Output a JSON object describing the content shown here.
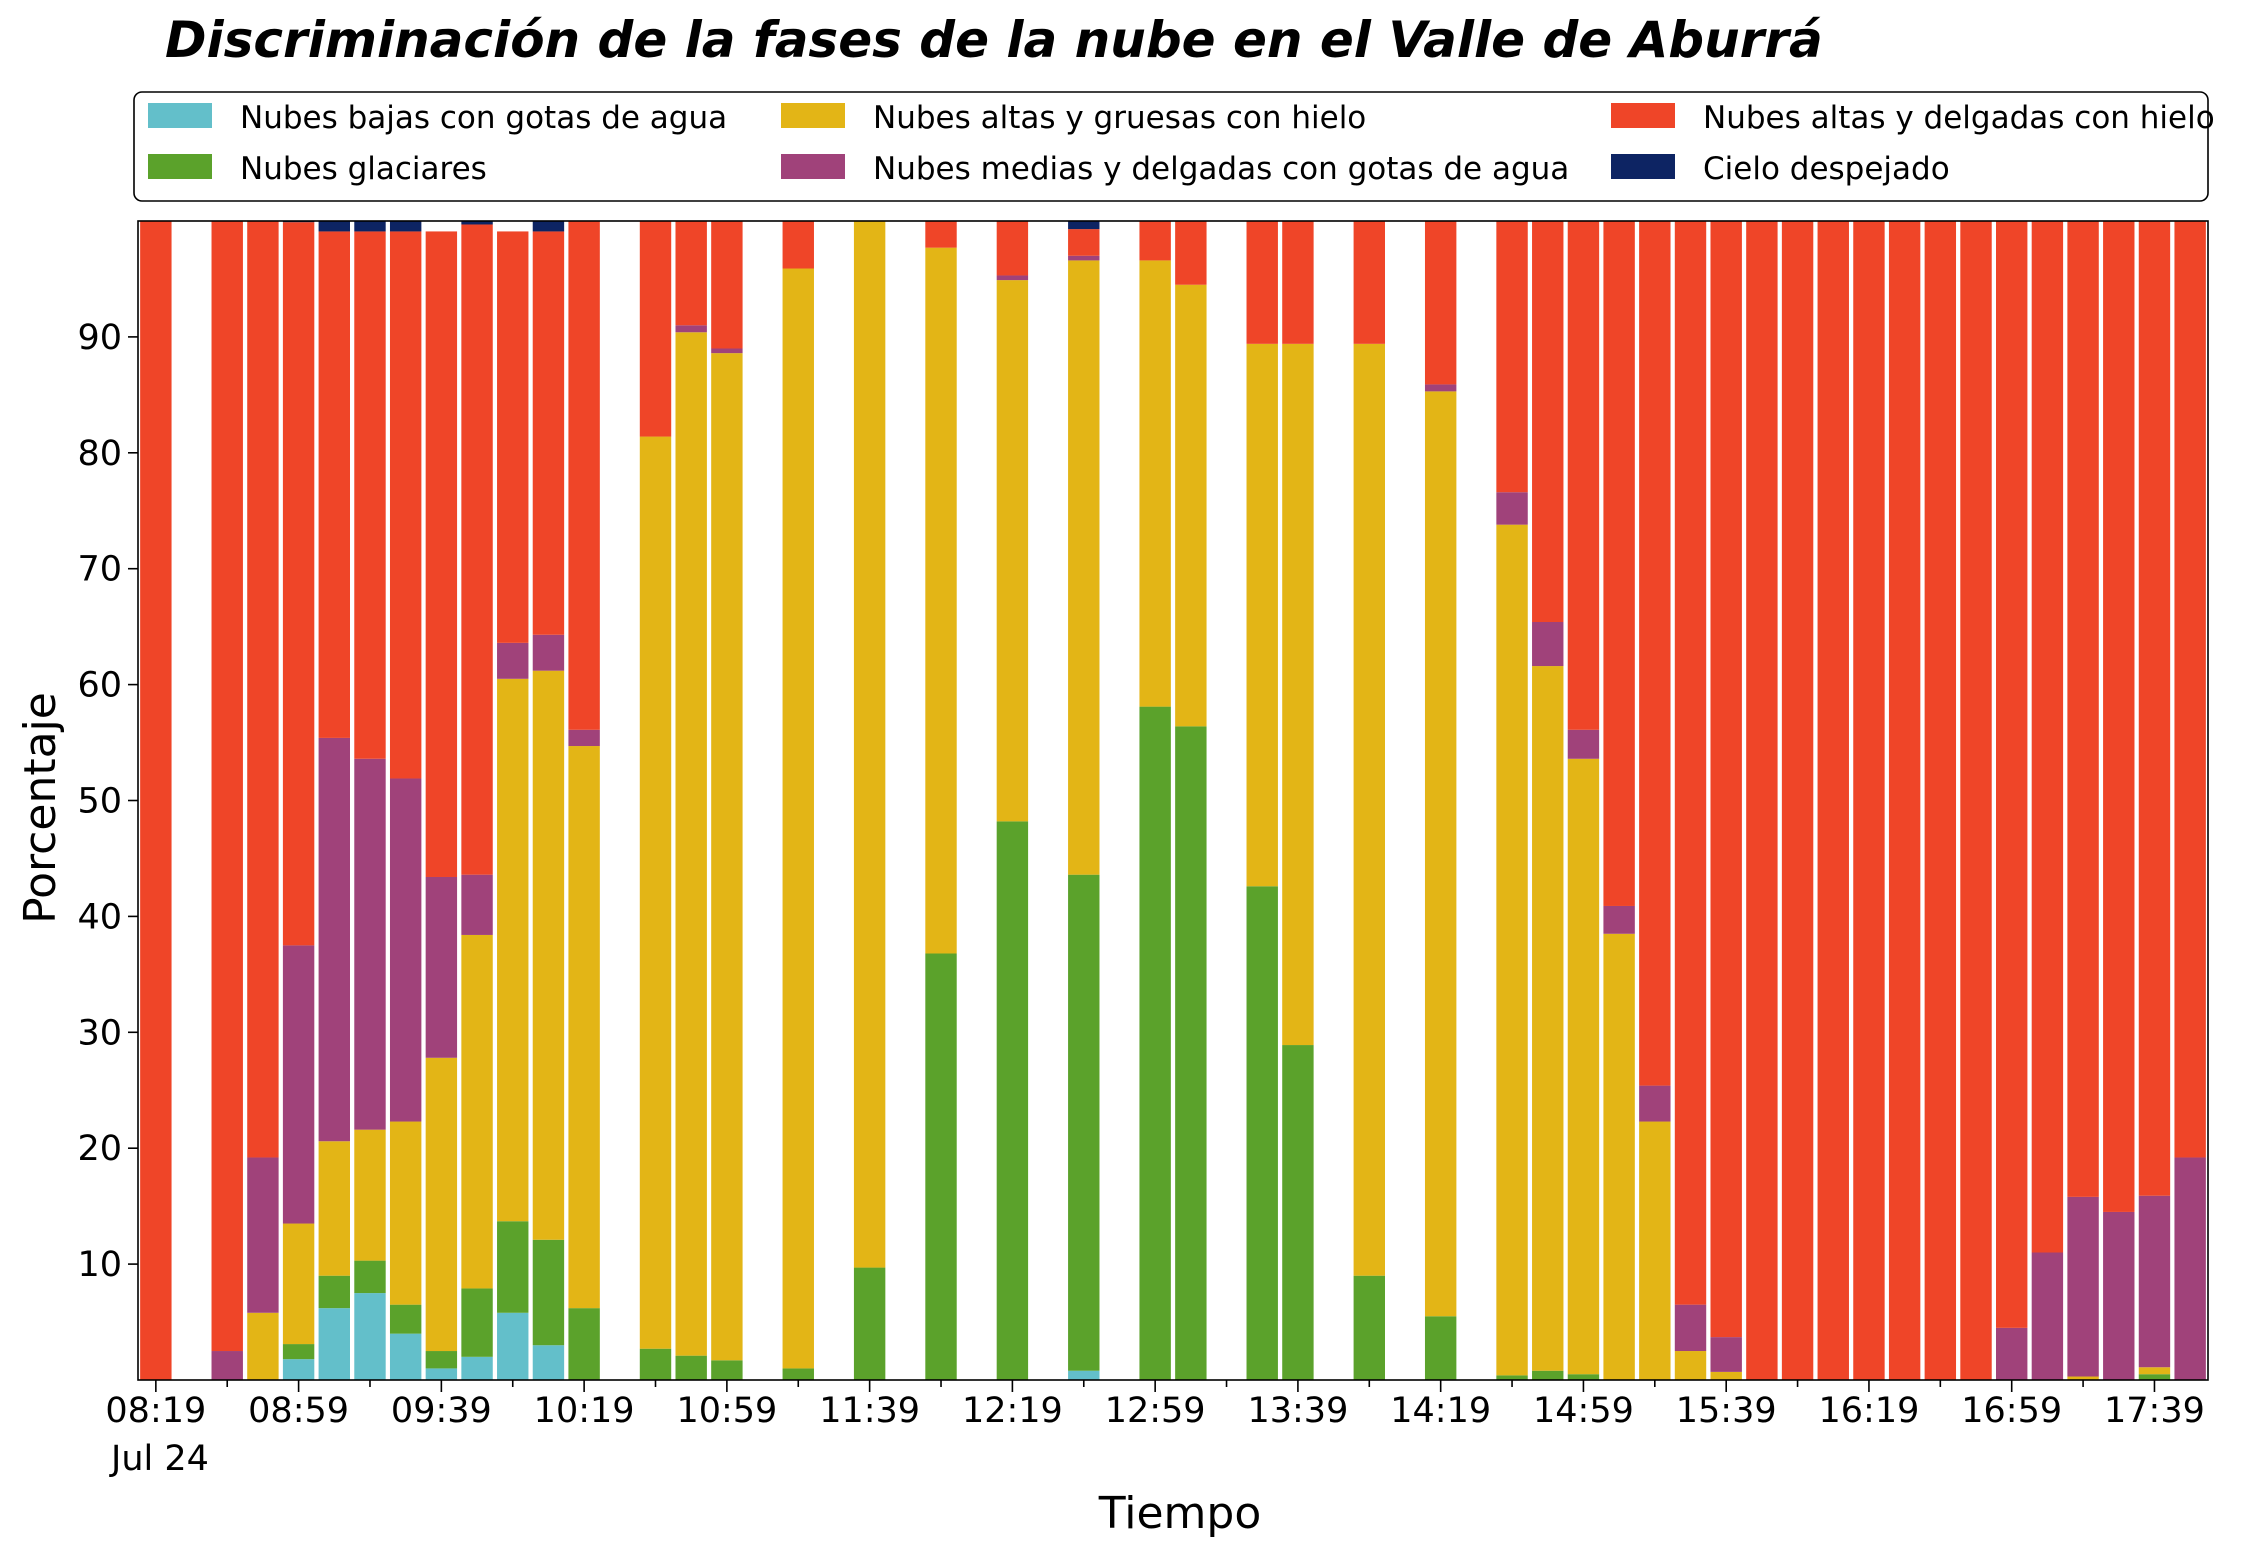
{
  "chart_data": {
    "type": "bar",
    "stacked": true,
    "title": "Discriminación de la fases de la nube en el Valle de Aburrá",
    "xlabel": "Tiempo",
    "ylabel": "Porcentaje",
    "ylim": [
      0,
      100
    ],
    "yticks": [
      10,
      20,
      30,
      40,
      50,
      60,
      70,
      80,
      90
    ],
    "x_tick_labels": [
      "08:19",
      "08:59",
      "09:39",
      "10:19",
      "10:59",
      "11:39",
      "12:19",
      "12:59",
      "13:39",
      "14:19",
      "14:59",
      "15:39",
      "16:19",
      "16:59",
      "17:39"
    ],
    "x_date_label": "Jul 24",
    "legend_position": "top",
    "x": [
      "08:19",
      "08:29",
      "08:39",
      "08:49",
      "08:59",
      "09:09",
      "09:19",
      "09:29",
      "09:39",
      "09:49",
      "09:59",
      "10:09",
      "10:19",
      "10:29",
      "10:39",
      "10:49",
      "10:59",
      "11:09",
      "11:19",
      "11:29",
      "11:39",
      "11:49",
      "11:59",
      "12:09",
      "12:19",
      "12:29",
      "12:39",
      "12:49",
      "12:59",
      "13:09",
      "13:19",
      "13:29",
      "13:39",
      "13:49",
      "13:59",
      "14:09",
      "14:19",
      "14:29",
      "14:39",
      "14:49",
      "14:59",
      "15:09",
      "15:19",
      "15:29",
      "15:39",
      "15:49",
      "15:59",
      "16:09",
      "16:19",
      "16:29",
      "16:39",
      "16:49",
      "16:59",
      "17:09",
      "17:19",
      "17:29",
      "17:39",
      "17:49"
    ],
    "series": [
      {
        "name": "Nubes bajas con gotas de agua",
        "color": "#63bfca",
        "values": [
          0,
          null,
          0,
          0,
          1.8,
          6.2,
          7.5,
          4,
          1,
          2,
          5.8,
          3,
          0,
          null,
          0,
          0,
          0,
          null,
          0,
          null,
          0,
          null,
          0,
          null,
          0,
          null,
          0.8,
          null,
          0,
          0,
          null,
          0,
          0,
          null,
          0,
          null,
          0,
          null,
          0,
          0,
          0,
          0,
          0,
          0,
          0,
          0,
          0,
          0,
          0,
          0,
          0,
          0,
          0,
          0,
          0,
          0,
          0,
          0
        ]
      },
      {
        "name": "Nubes glaciares",
        "color": "#5ba22b",
        "values": [
          0,
          null,
          0,
          0,
          1.3,
          2.8,
          2.8,
          2.5,
          1.5,
          5.9,
          7.9,
          9.1,
          6.2,
          null,
          2.7,
          2.1,
          1.7,
          null,
          1,
          null,
          9.7,
          null,
          36.8,
          null,
          48.2,
          null,
          42.8,
          null,
          58.1,
          56.4,
          null,
          42.6,
          28.9,
          null,
          9,
          null,
          5.5,
          null,
          0.4,
          0.8,
          0.5,
          0,
          0,
          0,
          0,
          0,
          0,
          0,
          0,
          0,
          0,
          0,
          0,
          0,
          0,
          0,
          0.5,
          0
        ]
      },
      {
        "name": "Nubes altas y gruesas con hielo",
        "color": "#e3b516",
        "values": [
          0,
          null,
          0,
          5.8,
          10.4,
          11.6,
          11.3,
          15.8,
          25.3,
          30.5,
          46.8,
          49.1,
          48.5,
          null,
          78.7,
          88.3,
          86.9,
          null,
          94.9,
          null,
          90.3,
          null,
          60.9,
          null,
          46.7,
          null,
          53,
          null,
          38.5,
          38.1,
          null,
          46.8,
          60.5,
          null,
          80.4,
          null,
          79.8,
          null,
          73.4,
          60.8,
          53.1,
          38.5,
          22.3,
          2.5,
          0.7,
          0,
          0,
          0,
          0,
          0,
          0,
          0,
          0,
          0,
          0.3,
          0,
          0.6,
          0
        ]
      },
      {
        "name": "Nubes medias y delgadas con gotas de agua",
        "color": "#a0427a",
        "values": [
          0,
          null,
          2.5,
          13.4,
          24,
          34.8,
          32,
          29.6,
          15.6,
          5.2,
          3.1,
          3.1,
          1.4,
          null,
          0,
          0.6,
          0.4,
          null,
          0,
          null,
          0,
          null,
          0,
          null,
          0.4,
          null,
          0.4,
          null,
          0,
          0,
          null,
          0,
          0,
          null,
          0,
          null,
          0.6,
          null,
          2.8,
          3.8,
          2.5,
          2.4,
          3.1,
          4,
          3,
          0,
          0,
          0,
          0,
          0,
          0,
          0,
          4.5,
          11,
          15.5,
          14.5,
          14.8,
          19.2
        ]
      },
      {
        "name": "Nubes altas y delgadas con hielo",
        "color": "#ef4528",
        "values": [
          100,
          null,
          97.5,
          80.8,
          62.4,
          43.7,
          45.5,
          47.2,
          55.7,
          56.1,
          35.5,
          34.8,
          43.9,
          null,
          18.6,
          9,
          11,
          null,
          4.1,
          null,
          0,
          null,
          2.3,
          null,
          4.7,
          null,
          2.3,
          null,
          3.4,
          5.5,
          null,
          10.6,
          10.6,
          null,
          10.6,
          null,
          14.1,
          null,
          23.4,
          34.6,
          43.9,
          59.1,
          74.6,
          93.5,
          96.3,
          100,
          100,
          100,
          100,
          100,
          100,
          100,
          95.5,
          89,
          84.2,
          85.5,
          84.1,
          80.8
        ]
      },
      {
        "name": "Cielo despejado",
        "color": "#0d2463",
        "values": [
          0,
          null,
          0,
          0,
          0.5,
          0.9,
          0.9,
          0.9,
          0,
          0.3,
          0,
          0.9,
          0,
          null,
          0,
          0,
          0,
          null,
          0,
          null,
          0,
          null,
          0,
          null,
          0,
          null,
          0.7,
          null,
          0,
          0,
          null,
          0,
          0,
          null,
          0,
          null,
          0,
          null,
          0,
          0,
          0,
          0,
          0,
          0,
          0,
          0,
          0,
          0,
          0,
          0,
          0,
          0,
          0,
          0,
          0,
          0,
          0,
          0
        ]
      }
    ]
  }
}
